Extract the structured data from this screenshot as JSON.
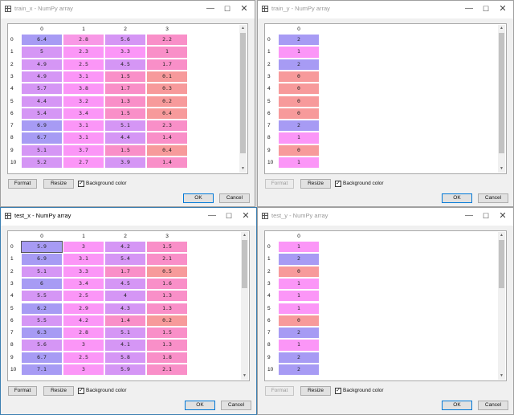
{
  "colors": {
    "blue": "#a79bf4",
    "violet": "#d596f5",
    "pink": "#f898e6",
    "salmon": "#f79a9b",
    "magenta": "#fb96f7",
    "hotpink": "#f98fc8"
  },
  "common": {
    "format_label": "Format",
    "resize_label": "Resize",
    "background_label": "Background color",
    "background_checked": "✓",
    "ok_label": "OK",
    "cancel_label": "Cancel",
    "scroll_up": "▲",
    "scroll_down": "▼",
    "minimize": "—",
    "maximize": "☐",
    "close": "✕"
  },
  "windows": [
    {
      "title": "train_x - NumPy array",
      "columns": [
        "0",
        "1",
        "2",
        "3"
      ],
      "rows": [
        {
          "index": "0",
          "cells": [
            {
              "v": "6.4",
              "c": "blue"
            },
            {
              "v": "2.8",
              "c": "pink"
            },
            {
              "v": "5.6",
              "c": "violet"
            },
            {
              "v": "2.2",
              "c": "hotpink"
            }
          ]
        },
        {
          "index": "1",
          "cells": [
            {
              "v": "5",
              "c": "violet"
            },
            {
              "v": "2.3",
              "c": "magenta"
            },
            {
              "v": "3.3",
              "c": "magenta"
            },
            {
              "v": "1",
              "c": "hotpink"
            }
          ]
        },
        {
          "index": "2",
          "cells": [
            {
              "v": "4.9",
              "c": "violet"
            },
            {
              "v": "2.5",
              "c": "magenta"
            },
            {
              "v": "4.5",
              "c": "violet"
            },
            {
              "v": "1.7",
              "c": "hotpink"
            }
          ]
        },
        {
          "index": "3",
          "cells": [
            {
              "v": "4.9",
              "c": "violet"
            },
            {
              "v": "3.1",
              "c": "magenta"
            },
            {
              "v": "1.5",
              "c": "hotpink"
            },
            {
              "v": "0.1",
              "c": "salmon"
            }
          ]
        },
        {
          "index": "4",
          "cells": [
            {
              "v": "5.7",
              "c": "violet"
            },
            {
              "v": "3.8",
              "c": "magenta"
            },
            {
              "v": "1.7",
              "c": "hotpink"
            },
            {
              "v": "0.3",
              "c": "salmon"
            }
          ]
        },
        {
          "index": "5",
          "cells": [
            {
              "v": "4.4",
              "c": "violet"
            },
            {
              "v": "3.2",
              "c": "magenta"
            },
            {
              "v": "1.3",
              "c": "hotpink"
            },
            {
              "v": "0.2",
              "c": "salmon"
            }
          ]
        },
        {
          "index": "6",
          "cells": [
            {
              "v": "5.4",
              "c": "violet"
            },
            {
              "v": "3.4",
              "c": "magenta"
            },
            {
              "v": "1.5",
              "c": "hotpink"
            },
            {
              "v": "0.4",
              "c": "salmon"
            }
          ]
        },
        {
          "index": "7",
          "cells": [
            {
              "v": "6.9",
              "c": "blue"
            },
            {
              "v": "3.1",
              "c": "magenta"
            },
            {
              "v": "5.1",
              "c": "violet"
            },
            {
              "v": "2.3",
              "c": "hotpink"
            }
          ]
        },
        {
          "index": "8",
          "cells": [
            {
              "v": "6.7",
              "c": "blue"
            },
            {
              "v": "3.1",
              "c": "magenta"
            },
            {
              "v": "4.4",
              "c": "violet"
            },
            {
              "v": "1.4",
              "c": "hotpink"
            }
          ]
        },
        {
          "index": "9",
          "cells": [
            {
              "v": "5.1",
              "c": "violet"
            },
            {
              "v": "3.7",
              "c": "magenta"
            },
            {
              "v": "1.5",
              "c": "hotpink"
            },
            {
              "v": "0.4",
              "c": "salmon"
            }
          ]
        },
        {
          "index": "10",
          "cells": [
            {
              "v": "5.2",
              "c": "violet"
            },
            {
              "v": "2.7",
              "c": "magenta"
            },
            {
              "v": "3.9",
              "c": "violet"
            },
            {
              "v": "1.4",
              "c": "hotpink"
            }
          ]
        }
      ],
      "format_disabled": false
    },
    {
      "title": "train_y - NumPy array",
      "columns": [
        "0"
      ],
      "rows": [
        {
          "index": "0",
          "cells": [
            {
              "v": "2",
              "c": "blue"
            }
          ]
        },
        {
          "index": "1",
          "cells": [
            {
              "v": "1",
              "c": "magenta"
            }
          ]
        },
        {
          "index": "2",
          "cells": [
            {
              "v": "2",
              "c": "blue"
            }
          ]
        },
        {
          "index": "3",
          "cells": [
            {
              "v": "0",
              "c": "salmon"
            }
          ]
        },
        {
          "index": "4",
          "cells": [
            {
              "v": "0",
              "c": "salmon"
            }
          ]
        },
        {
          "index": "5",
          "cells": [
            {
              "v": "0",
              "c": "salmon"
            }
          ]
        },
        {
          "index": "6",
          "cells": [
            {
              "v": "0",
              "c": "salmon"
            }
          ]
        },
        {
          "index": "7",
          "cells": [
            {
              "v": "2",
              "c": "blue"
            }
          ]
        },
        {
          "index": "8",
          "cells": [
            {
              "v": "1",
              "c": "magenta"
            }
          ]
        },
        {
          "index": "9",
          "cells": [
            {
              "v": "0",
              "c": "salmon"
            }
          ]
        },
        {
          "index": "10",
          "cells": [
            {
              "v": "1",
              "c": "magenta"
            }
          ]
        }
      ],
      "format_disabled": true
    },
    {
      "title": "test_x - NumPy array",
      "columns": [
        "0",
        "1",
        "2",
        "3"
      ],
      "rows": [
        {
          "index": "0",
          "cells": [
            {
              "v": "5.9",
              "c": "blue",
              "selected": true
            },
            {
              "v": "3",
              "c": "magenta"
            },
            {
              "v": "4.2",
              "c": "violet"
            },
            {
              "v": "1.5",
              "c": "hotpink"
            }
          ]
        },
        {
          "index": "1",
          "cells": [
            {
              "v": "6.9",
              "c": "blue"
            },
            {
              "v": "3.1",
              "c": "magenta"
            },
            {
              "v": "5.4",
              "c": "violet"
            },
            {
              "v": "2.1",
              "c": "hotpink"
            }
          ]
        },
        {
          "index": "2",
          "cells": [
            {
              "v": "5.1",
              "c": "violet"
            },
            {
              "v": "3.3",
              "c": "magenta"
            },
            {
              "v": "1.7",
              "c": "hotpink"
            },
            {
              "v": "0.5",
              "c": "salmon"
            }
          ]
        },
        {
          "index": "3",
          "cells": [
            {
              "v": "6",
              "c": "blue"
            },
            {
              "v": "3.4",
              "c": "magenta"
            },
            {
              "v": "4.5",
              "c": "violet"
            },
            {
              "v": "1.6",
              "c": "hotpink"
            }
          ]
        },
        {
          "index": "4",
          "cells": [
            {
              "v": "5.5",
              "c": "violet"
            },
            {
              "v": "2.5",
              "c": "magenta"
            },
            {
              "v": "4",
              "c": "violet"
            },
            {
              "v": "1.3",
              "c": "hotpink"
            }
          ]
        },
        {
          "index": "5",
          "cells": [
            {
              "v": "6.2",
              "c": "blue"
            },
            {
              "v": "2.9",
              "c": "magenta"
            },
            {
              "v": "4.3",
              "c": "violet"
            },
            {
              "v": "1.3",
              "c": "hotpink"
            }
          ]
        },
        {
          "index": "6",
          "cells": [
            {
              "v": "5.5",
              "c": "violet"
            },
            {
              "v": "4.2",
              "c": "magenta"
            },
            {
              "v": "1.4",
              "c": "hotpink"
            },
            {
              "v": "0.2",
              "c": "salmon"
            }
          ]
        },
        {
          "index": "7",
          "cells": [
            {
              "v": "6.3",
              "c": "blue"
            },
            {
              "v": "2.8",
              "c": "magenta"
            },
            {
              "v": "5.1",
              "c": "violet"
            },
            {
              "v": "1.5",
              "c": "hotpink"
            }
          ]
        },
        {
          "index": "8",
          "cells": [
            {
              "v": "5.6",
              "c": "violet"
            },
            {
              "v": "3",
              "c": "magenta"
            },
            {
              "v": "4.1",
              "c": "violet"
            },
            {
              "v": "1.3",
              "c": "hotpink"
            }
          ]
        },
        {
          "index": "9",
          "cells": [
            {
              "v": "6.7",
              "c": "blue"
            },
            {
              "v": "2.5",
              "c": "magenta"
            },
            {
              "v": "5.8",
              "c": "violet"
            },
            {
              "v": "1.8",
              "c": "hotpink"
            }
          ]
        },
        {
          "index": "10",
          "cells": [
            {
              "v": "7.1",
              "c": "blue"
            },
            {
              "v": "3",
              "c": "magenta"
            },
            {
              "v": "5.9",
              "c": "violet"
            },
            {
              "v": "2.1",
              "c": "hotpink"
            }
          ]
        }
      ],
      "format_disabled": false
    },
    {
      "title": "test_y - NumPy array",
      "columns": [
        "0"
      ],
      "rows": [
        {
          "index": "0",
          "cells": [
            {
              "v": "1",
              "c": "magenta"
            }
          ]
        },
        {
          "index": "1",
          "cells": [
            {
              "v": "2",
              "c": "blue"
            }
          ]
        },
        {
          "index": "2",
          "cells": [
            {
              "v": "0",
              "c": "salmon"
            }
          ]
        },
        {
          "index": "3",
          "cells": [
            {
              "v": "1",
              "c": "magenta"
            }
          ]
        },
        {
          "index": "4",
          "cells": [
            {
              "v": "1",
              "c": "magenta"
            }
          ]
        },
        {
          "index": "5",
          "cells": [
            {
              "v": "1",
              "c": "magenta"
            }
          ]
        },
        {
          "index": "6",
          "cells": [
            {
              "v": "0",
              "c": "salmon"
            }
          ]
        },
        {
          "index": "7",
          "cells": [
            {
              "v": "2",
              "c": "blue"
            }
          ]
        },
        {
          "index": "8",
          "cells": [
            {
              "v": "1",
              "c": "magenta"
            }
          ]
        },
        {
          "index": "9",
          "cells": [
            {
              "v": "2",
              "c": "blue"
            }
          ]
        },
        {
          "index": "10",
          "cells": [
            {
              "v": "2",
              "c": "blue"
            }
          ]
        }
      ],
      "format_disabled": true
    }
  ]
}
